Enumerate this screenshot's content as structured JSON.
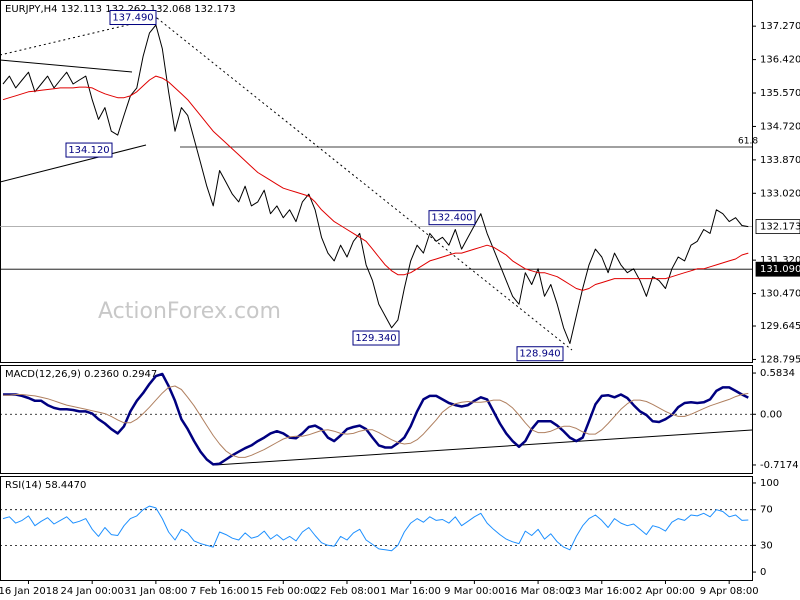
{
  "chart_data": [
    {
      "type": "line",
      "title": "EURJPY,H4  132.113 132.262 132.068 132.173",
      "watermark": "ActionForex.com",
      "categories": [
        null,
        null,
        null,
        null,
        "16 Jan 2018",
        null,
        null,
        null,
        null,
        null,
        null,
        null,
        null,
        null,
        "24 Jan 00:00",
        null,
        null,
        null,
        null,
        null,
        null,
        null,
        null,
        null,
        "31 Jan 08:00",
        null,
        null,
        null,
        null,
        null,
        null,
        null,
        null,
        null,
        "7 Feb 16:00",
        null,
        null,
        null,
        null,
        null,
        null,
        null,
        null,
        null,
        "15 Feb 00:00",
        null,
        null,
        null,
        null,
        null,
        null,
        null,
        null,
        null,
        "22 Feb 08:00",
        null,
        null,
        null,
        null,
        null,
        null,
        null,
        null,
        null,
        "1 Mar 16:00",
        null,
        null,
        null,
        null,
        null,
        null,
        null,
        null,
        null,
        "9 Mar 00:00",
        null,
        null,
        null,
        null,
        null,
        null,
        null,
        null,
        null,
        "16 Mar 08:00",
        null,
        null,
        null,
        null,
        null,
        null,
        null,
        null,
        null,
        "23 Mar 16:00",
        null,
        null,
        null,
        null,
        null,
        null,
        null,
        null,
        null,
        "2 Apr 00:00",
        null,
        null,
        null,
        null,
        null,
        null,
        null,
        null,
        null,
        "9 Apr 08:00",
        null,
        null,
        null
      ],
      "series": [
        {
          "color": "#000000",
          "values": [
            135.8,
            136.0,
            135.7,
            135.9,
            136.1,
            135.6,
            135.8,
            136.0,
            135.7,
            135.9,
            136.1,
            135.8,
            135.9,
            136.0,
            135.4,
            134.9,
            135.2,
            134.6,
            134.5,
            135.0,
            135.5,
            135.7,
            136.5,
            137.1,
            137.3,
            136.7,
            135.6,
            134.6,
            135.2,
            135.0,
            134.4,
            133.8,
            133.2,
            132.7,
            133.6,
            133.3,
            133.0,
            132.8,
            133.2,
            132.7,
            132.8,
            133.1,
            132.5,
            132.7,
            132.4,
            132.6,
            132.3,
            132.8,
            133.0,
            132.6,
            131.9,
            131.5,
            131.3,
            131.7,
            131.4,
            131.8,
            132.0,
            131.2,
            130.8,
            130.2,
            129.9,
            129.6,
            129.8,
            130.6,
            131.3,
            131.7,
            131.5,
            132.0,
            131.8,
            131.9,
            131.7,
            132.1,
            131.6,
            131.9,
            132.2,
            132.5,
            132.0,
            131.6,
            131.2,
            130.8,
            130.4,
            130.2,
            131.0,
            130.7,
            131.1,
            130.4,
            130.7,
            130.2,
            129.6,
            129.2,
            129.9,
            130.6,
            131.2,
            131.6,
            131.4,
            131.0,
            131.5,
            131.2,
            131.0,
            131.1,
            130.8,
            130.4,
            130.9,
            130.8,
            130.6,
            131.1,
            131.4,
            131.3,
            131.7,
            131.8,
            132.1,
            132.0,
            132.6,
            132.5,
            132.3,
            132.4,
            132.2,
            132.173
          ]
        },
        {
          "color": "#e00000",
          "values": [
            135.4,
            135.45,
            135.5,
            135.55,
            135.6,
            135.62,
            135.64,
            135.66,
            135.68,
            135.7,
            135.7,
            135.7,
            135.72,
            135.72,
            135.7,
            135.62,
            135.55,
            135.5,
            135.45,
            135.45,
            135.5,
            135.6,
            135.75,
            135.9,
            136.0,
            135.95,
            135.85,
            135.7,
            135.55,
            135.4,
            135.2,
            135.0,
            134.8,
            134.6,
            134.45,
            134.3,
            134.15,
            134.0,
            133.85,
            133.7,
            133.55,
            133.45,
            133.35,
            133.25,
            133.15,
            133.1,
            133.05,
            133.0,
            132.95,
            132.8,
            132.6,
            132.45,
            132.3,
            132.2,
            132.1,
            132.0,
            131.9,
            131.8,
            131.6,
            131.4,
            131.2,
            131.05,
            130.95,
            130.95,
            131.0,
            131.1,
            131.2,
            131.3,
            131.35,
            131.4,
            131.45,
            131.5,
            131.5,
            131.55,
            131.6,
            131.65,
            131.7,
            131.65,
            131.55,
            131.45,
            131.3,
            131.2,
            131.1,
            131.05,
            131.0,
            131.0,
            130.95,
            130.9,
            130.8,
            130.7,
            130.6,
            130.55,
            130.6,
            130.7,
            130.75,
            130.8,
            130.85,
            130.85,
            130.85,
            130.85,
            130.85,
            130.85,
            130.85,
            130.85,
            130.85,
            130.9,
            130.95,
            131.0,
            131.05,
            131.1,
            131.1,
            131.15,
            131.2,
            131.25,
            131.3,
            131.35,
            131.45,
            131.5
          ]
        }
      ],
      "ylim": [
        128.73,
        137.91
      ],
      "yticks": [
        {
          "value": 137.27,
          "label": "137.270"
        },
        {
          "value": 136.42,
          "label": "136.420"
        },
        {
          "value": 135.57,
          "label": "135.570"
        },
        {
          "value": 134.72,
          "label": "134.720"
        },
        {
          "value": 133.87,
          "label": "133.870"
        },
        {
          "value": 133.02,
          "label": "133.020"
        },
        {
          "value": 131.32,
          "label": "131.320"
        },
        {
          "value": 130.47,
          "label": "130.470"
        },
        129.645,
        128.795
      ],
      "annotations": [
        {
          "value": 137.49,
          "label": "137.490"
        },
        {
          "value": 134.12,
          "label": "134.120"
        },
        {
          "value": 132.4,
          "label": "132.400"
        },
        {
          "value": 129.34,
          "label": "129.340"
        },
        {
          "value": 128.94,
          "label": "128.940"
        }
      ],
      "levels": [
        {
          "value": 132.173,
          "label": "132.173"
        },
        {
          "value": 131.09,
          "label": "131.090"
        }
      ],
      "fib_label": "61.8",
      "grid": false
    },
    {
      "type": "line",
      "title": "MACD(12,26,9) 0.2360 0.2947",
      "series": [
        {
          "color": "#000080",
          "values": [
            0.28,
            0.28,
            0.28,
            0.26,
            0.23,
            0.19,
            0.19,
            0.13,
            0.09,
            0.07,
            0.07,
            0.06,
            0.04,
            0.04,
            0.01,
            -0.07,
            -0.13,
            -0.21,
            -0.27,
            -0.17,
            0.04,
            0.19,
            0.3,
            0.43,
            0.54,
            0.57,
            0.4,
            0.19,
            -0.07,
            -0.21,
            -0.38,
            -0.53,
            -0.64,
            -0.71,
            -0.7,
            -0.64,
            -0.58,
            -0.53,
            -0.48,
            -0.44,
            -0.38,
            -0.33,
            -0.27,
            -0.24,
            -0.27,
            -0.33,
            -0.34,
            -0.27,
            -0.18,
            -0.16,
            -0.21,
            -0.33,
            -0.38,
            -0.3,
            -0.21,
            -0.18,
            -0.16,
            -0.21,
            -0.33,
            -0.44,
            -0.47,
            -0.47,
            -0.41,
            -0.33,
            -0.17,
            0.04,
            0.21,
            0.26,
            0.26,
            0.21,
            0.16,
            0.13,
            0.11,
            0.13,
            0.19,
            0.24,
            0.21,
            0.04,
            -0.13,
            -0.27,
            -0.38,
            -0.46,
            -0.38,
            -0.21,
            -0.1,
            -0.1,
            -0.1,
            -0.16,
            -0.24,
            -0.33,
            -0.38,
            -0.33,
            -0.1,
            0.14,
            0.26,
            0.27,
            0.24,
            0.28,
            0.23,
            0.13,
            0.04,
            -0.01,
            -0.1,
            -0.11,
            -0.07,
            -0.01,
            0.1,
            0.16,
            0.17,
            0.16,
            0.17,
            0.21,
            0.33,
            0.38,
            0.38,
            0.33,
            0.28,
            0.236
          ]
        },
        {
          "color": "#b08060",
          "values": [
            0.27,
            0.27,
            0.28,
            0.28,
            0.27,
            0.26,
            0.24,
            0.22,
            0.19,
            0.16,
            0.13,
            0.11,
            0.09,
            0.07,
            0.05,
            0.03,
            0.01,
            -0.03,
            -0.08,
            -0.12,
            -0.12,
            -0.07,
            0.01,
            0.1,
            0.2,
            0.3,
            0.38,
            0.4,
            0.35,
            0.24,
            0.12,
            -0.02,
            -0.16,
            -0.3,
            -0.42,
            -0.52,
            -0.58,
            -0.61,
            -0.61,
            -0.58,
            -0.54,
            -0.5,
            -0.45,
            -0.4,
            -0.35,
            -0.32,
            -0.31,
            -0.31,
            -0.29,
            -0.26,
            -0.23,
            -0.22,
            -0.24,
            -0.27,
            -0.28,
            -0.27,
            -0.24,
            -0.22,
            -0.22,
            -0.26,
            -0.31,
            -0.36,
            -0.4,
            -0.42,
            -0.41,
            -0.36,
            -0.28,
            -0.18,
            -0.08,
            0.03,
            0.1,
            0.15,
            0.17,
            0.18,
            0.17,
            0.17,
            0.18,
            0.2,
            0.2,
            0.16,
            0.09,
            -0.01,
            -0.12,
            -0.22,
            -0.26,
            -0.26,
            -0.24,
            -0.2,
            -0.17,
            -0.17,
            -0.2,
            -0.25,
            -0.28,
            -0.28,
            -0.22,
            -0.13,
            -0.03,
            0.07,
            0.15,
            0.2,
            0.2,
            0.18,
            0.14,
            0.09,
            0.04,
            0.0,
            -0.03,
            -0.03,
            0.0,
            0.04,
            0.08,
            0.12,
            0.15,
            0.18,
            0.21,
            0.25,
            0.28,
            0.2947
          ]
        }
      ],
      "ylim": [
        -0.831,
        0.683
      ],
      "yticks": [
        0.5834,
        {
          "value": 0,
          "label": "0.00"
        },
        -0.7174
      ],
      "grid": true
    },
    {
      "type": "line",
      "title": "RSI(14) 58.4470",
      "series": [
        {
          "color": "#1e90ff",
          "values": [
            60,
            62,
            55,
            58,
            63,
            52,
            57,
            61,
            54,
            58,
            62,
            55,
            57,
            60,
            48,
            40,
            50,
            42,
            41,
            52,
            60,
            63,
            70,
            74,
            72,
            60,
            45,
            36,
            48,
            44,
            35,
            32,
            30,
            28,
            45,
            42,
            38,
            36,
            44,
            38,
            40,
            46,
            37,
            42,
            36,
            40,
            35,
            45,
            50,
            41,
            33,
            30,
            29,
            40,
            36,
            44,
            48,
            36,
            31,
            26,
            25,
            24,
            30,
            45,
            55,
            60,
            56,
            62,
            58,
            59,
            55,
            62,
            52,
            57,
            62,
            66,
            55,
            48,
            42,
            37,
            34,
            32,
            46,
            41,
            48,
            37,
            43,
            34,
            28,
            25,
            40,
            52,
            60,
            64,
            58,
            50,
            60,
            55,
            52,
            54,
            48,
            42,
            52,
            50,
            46,
            56,
            60,
            58,
            64,
            63,
            66,
            62,
            70,
            68,
            62,
            64,
            58,
            58.447
          ]
        }
      ],
      "ylim": [
        -8.9,
        106.7
      ],
      "yticks": [
        100,
        70,
        30,
        0
      ],
      "grid": true
    }
  ]
}
